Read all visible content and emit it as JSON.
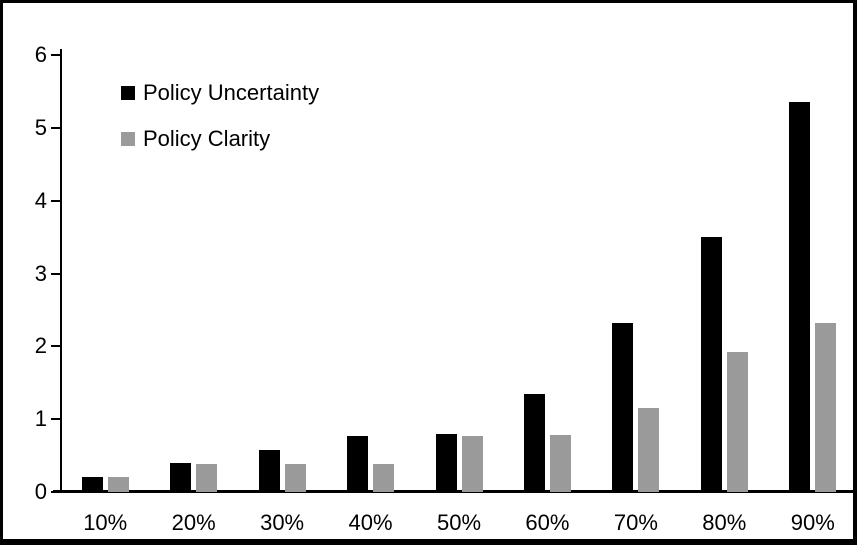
{
  "frame": {
    "background": "#ffffff",
    "border_color": "#000000"
  },
  "chart_data": {
    "type": "bar",
    "title": "",
    "xlabel": "",
    "ylabel": "",
    "categories": [
      "10%",
      "20%",
      "30%",
      "40%",
      "50%",
      "60%",
      "70%",
      "80%",
      "90%"
    ],
    "series": [
      {
        "name": "Policy Uncertainty",
        "color": "#000000",
        "values": [
          0.2,
          0.4,
          0.58,
          0.77,
          0.79,
          1.35,
          2.32,
          3.5,
          5.35
        ]
      },
      {
        "name": "Policy Clarity",
        "color": "#9a9a9a",
        "values": [
          0.2,
          0.38,
          0.39,
          0.39,
          0.77,
          0.78,
          1.16,
          1.92,
          2.32
        ]
      }
    ],
    "ylim": [
      0,
      6
    ],
    "yticks": [
      0,
      1,
      2,
      3,
      4,
      5,
      6
    ],
    "grid": false,
    "legend_position": "top-left-inside",
    "axis_color": "#000000",
    "tick_label_color": "#000000"
  }
}
